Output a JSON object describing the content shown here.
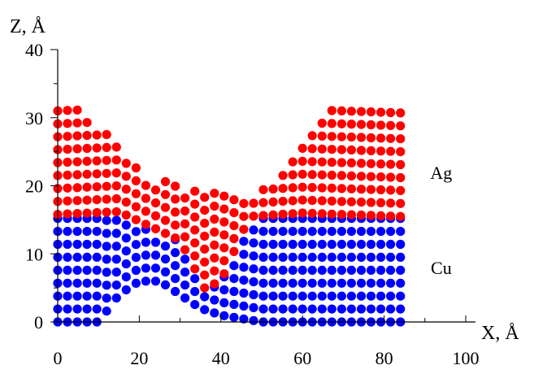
{
  "chart_data": {
    "type": "scatter",
    "xlabel": "X, Å",
    "ylabel": "Z, Å",
    "xlim": [
      0,
      100
    ],
    "ylim": [
      0,
      40
    ],
    "x_ticks": [
      "0",
      "20",
      "40",
      "60",
      "80",
      "100"
    ],
    "y_ticks": [
      "0",
      "10",
      "20",
      "30",
      "40"
    ],
    "x_tick_values": [
      0,
      20,
      40,
      60,
      80,
      100
    ],
    "y_tick_values": [
      0,
      10,
      20,
      30,
      40
    ],
    "grid": false,
    "legend": "none",
    "annotations": [
      {
        "text": "Ag",
        "x": 94,
        "y": 22
      },
      {
        "text": "Cu",
        "x": 94,
        "y": 8
      }
    ],
    "series": [
      {
        "color": "#ff0000",
        "domain": {
          "x": [
            0,
            84
          ],
          "z": [
            14.5,
            33
          ]
        },
        "interface": [
          [
            0,
            15.8
          ],
          [
            15,
            16.2
          ],
          [
            30,
            12
          ],
          [
            36,
            5
          ],
          [
            40,
            6
          ],
          [
            47,
            15.5
          ],
          [
            60,
            16
          ],
          [
            84,
            15.5
          ]
        ],
        "top_surface": [
          [
            0,
            32.5
          ],
          [
            4,
            32.5
          ],
          [
            10,
            29
          ],
          [
            15,
            26
          ],
          [
            20,
            22
          ],
          [
            30,
            20
          ],
          [
            40,
            19
          ],
          [
            48,
            19
          ],
          [
            55,
            22
          ],
          [
            60,
            26
          ],
          [
            65,
            31
          ],
          [
            70,
            32.5
          ],
          [
            84,
            32.5
          ]
        ]
      },
      {
        "color": "#0000ff",
        "domain": {
          "x": [
            0,
            84
          ],
          "z": [
            0,
            15.5
          ]
        },
        "bottom_surface": [
          [
            0,
            0
          ],
          [
            10,
            0
          ],
          [
            15,
            4
          ],
          [
            20,
            6
          ],
          [
            25,
            6
          ],
          [
            30,
            4
          ],
          [
            35,
            2
          ],
          [
            40,
            1
          ],
          [
            50,
            0
          ],
          [
            84,
            0
          ]
        ]
      }
    ]
  }
}
